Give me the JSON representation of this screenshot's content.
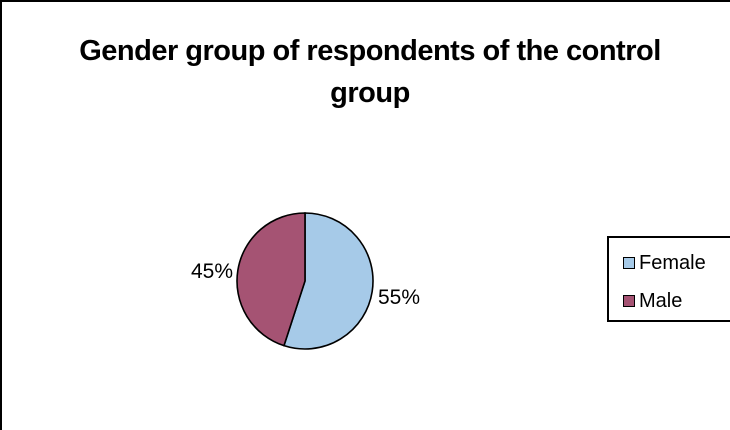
{
  "chart_data": {
    "type": "pie",
    "title": "Gender group of respondents of the control group",
    "categories": [
      "Female",
      "Male"
    ],
    "values": [
      55,
      45
    ],
    "labels": [
      "55%",
      "45%"
    ],
    "colors": [
      "#a6cae8",
      "#a55373"
    ],
    "legend_position": "right"
  }
}
